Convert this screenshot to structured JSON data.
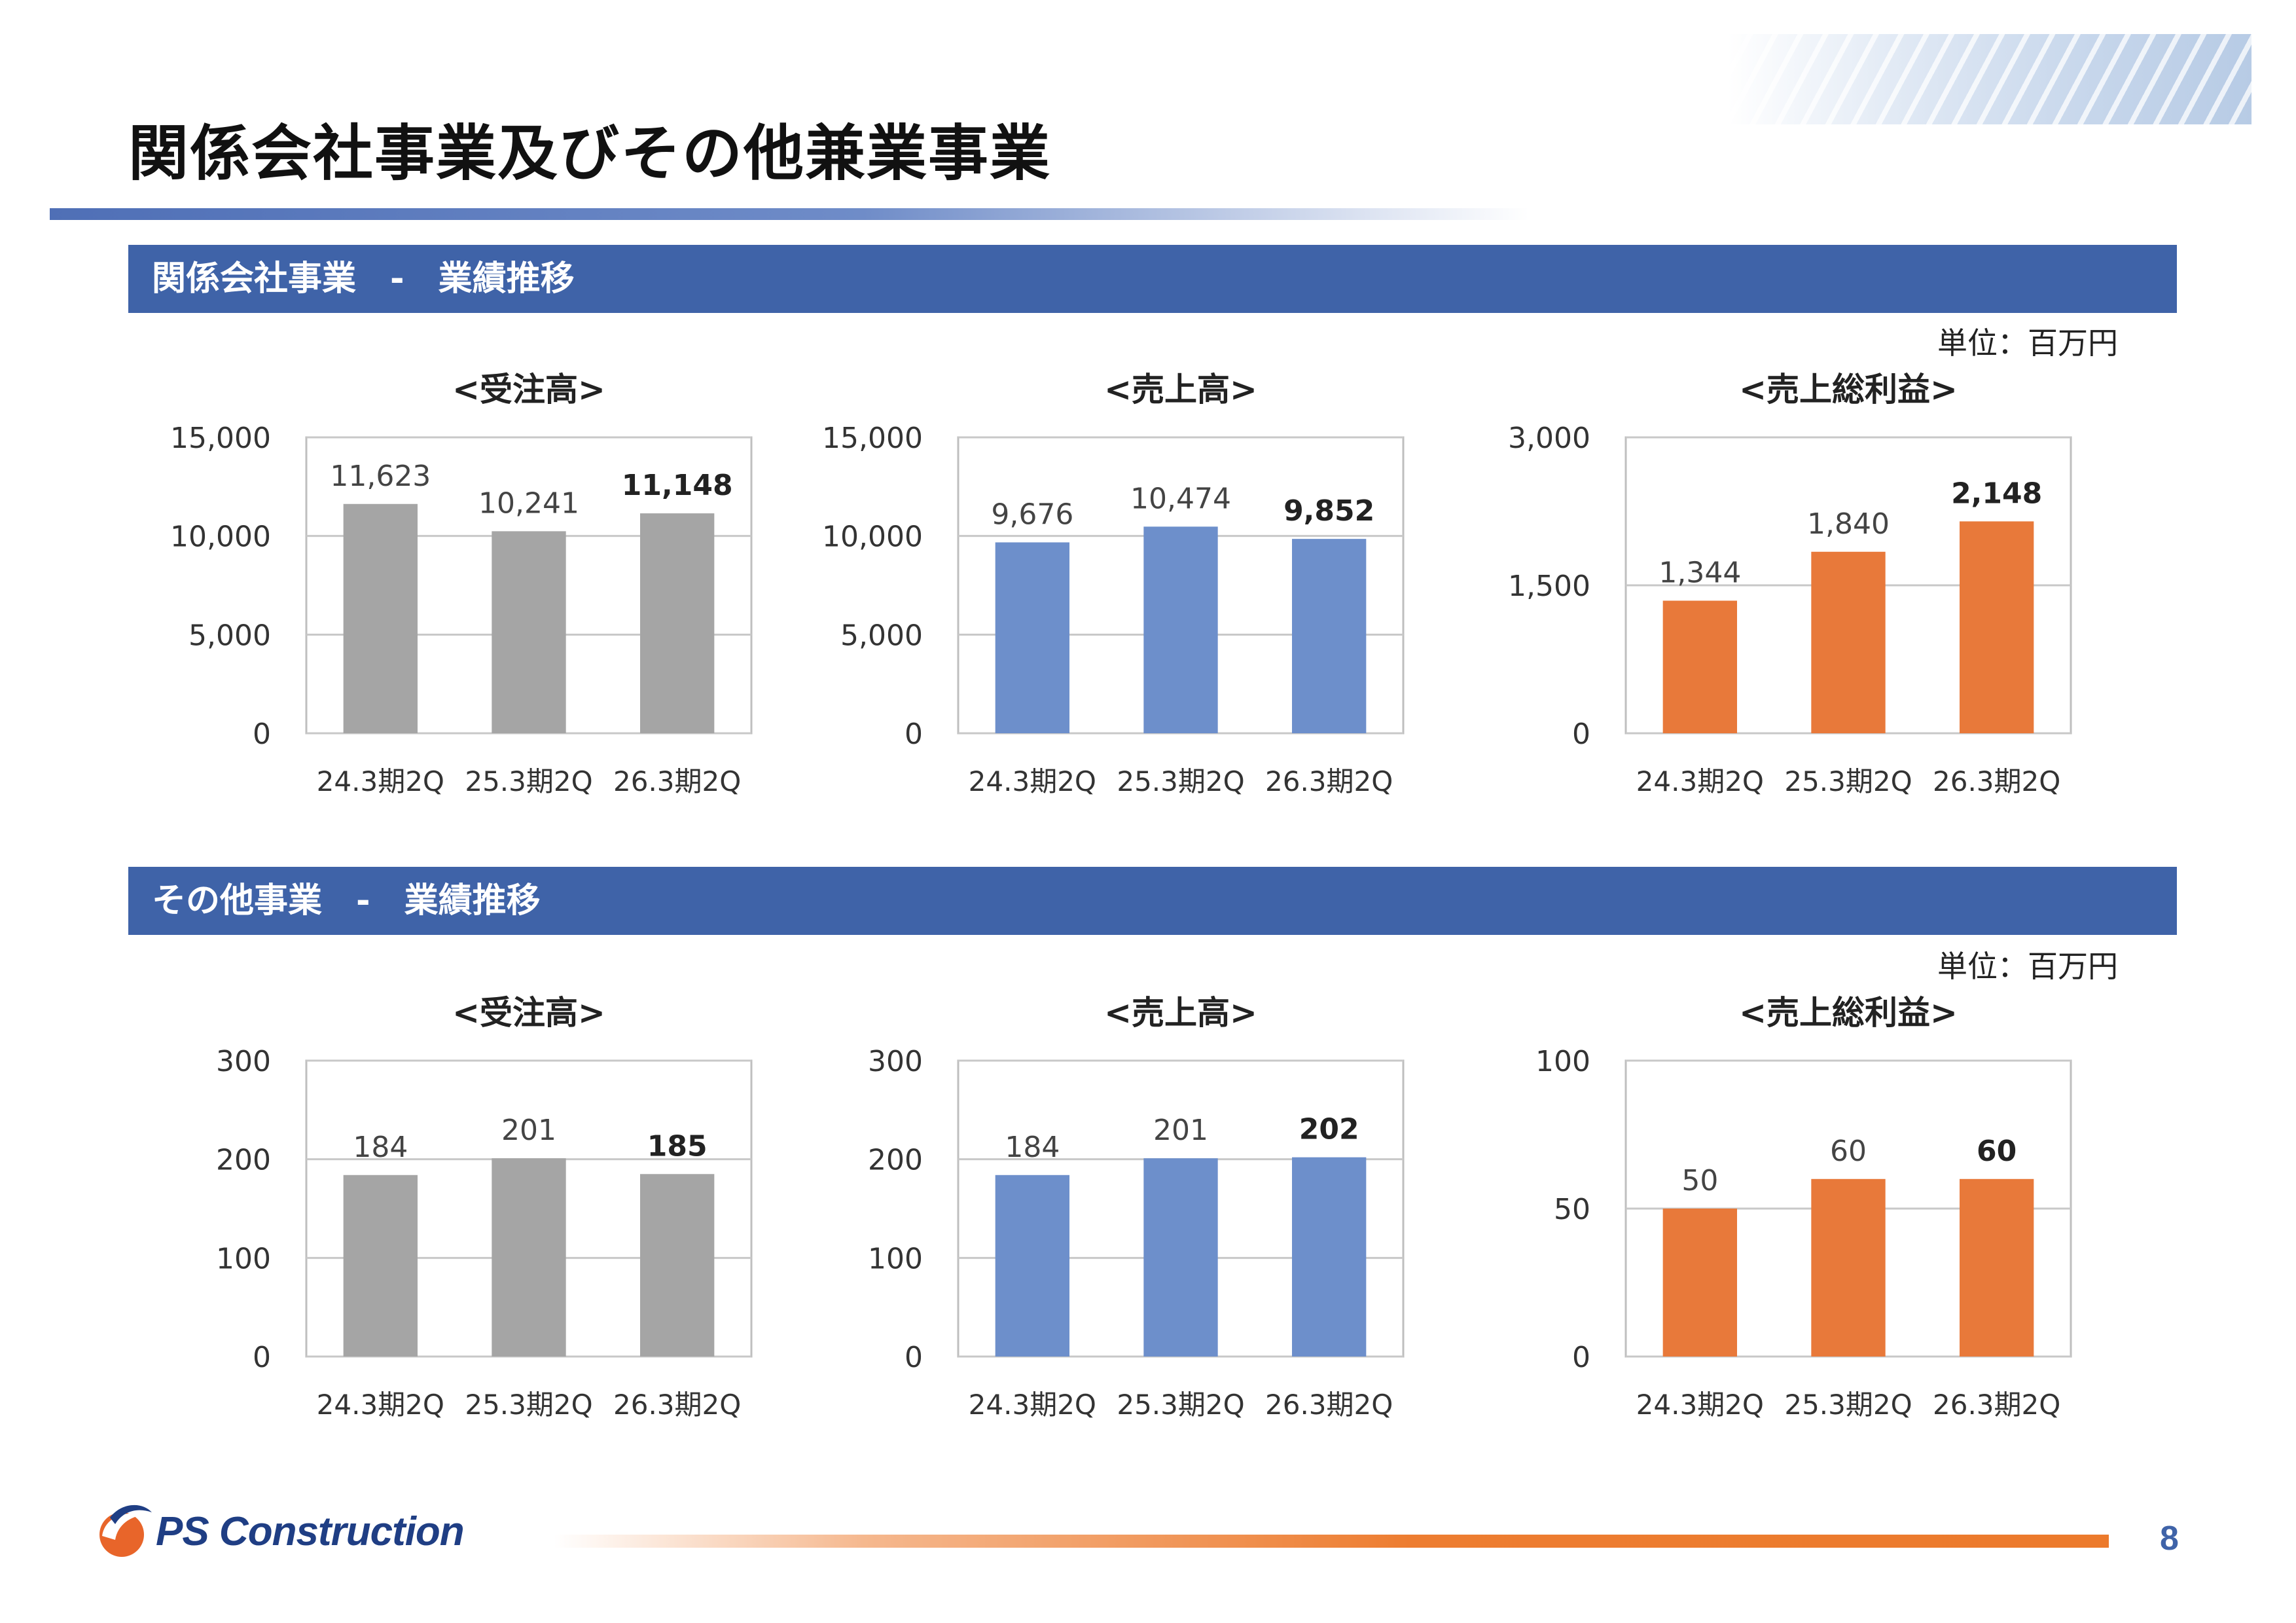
{
  "page": {
    "title": "関係会社事業及びその他兼業事業",
    "number": "8",
    "logo_text": "PS Construction"
  },
  "sections": [
    {
      "title": "関係会社事業　-　業績推移",
      "unit": "単位：百万円"
    },
    {
      "title": "その他事業　-　業績推移",
      "unit": "単位：百万円"
    }
  ],
  "colors": {
    "section_bar": "#3f63a8",
    "orders_bar": "#a5a5a5",
    "sales_bar": "#6d8fcb",
    "profit_bar": "#e8793a",
    "accent_orange": "#ed7d31",
    "page_number": "#3f63a8"
  },
  "chart_data": [
    {
      "id": "affiliate-orders",
      "type": "bar",
      "title": "<受注高>",
      "categories": [
        "24.3期2Q",
        "25.3期2Q",
        "26.3期2Q"
      ],
      "values": [
        11623,
        10241,
        11148
      ],
      "value_labels": [
        "11,623",
        "10,241",
        "11,148"
      ],
      "yticks": [
        0,
        5000,
        10000,
        15000
      ],
      "ytick_labels": [
        "0",
        "5,000",
        "10,000",
        "15,000"
      ],
      "ylim": [
        0,
        15000
      ],
      "grid": true,
      "bold_last": true,
      "color_key": "orders_bar"
    },
    {
      "id": "affiliate-sales",
      "type": "bar",
      "title": "<売上高>",
      "categories": [
        "24.3期2Q",
        "25.3期2Q",
        "26.3期2Q"
      ],
      "values": [
        9676,
        10474,
        9852
      ],
      "value_labels": [
        "9,676",
        "10,474",
        "9,852"
      ],
      "yticks": [
        0,
        5000,
        10000,
        15000
      ],
      "ytick_labels": [
        "0",
        "5,000",
        "10,000",
        "15,000"
      ],
      "ylim": [
        0,
        15000
      ],
      "grid": true,
      "bold_last": true,
      "color_key": "sales_bar"
    },
    {
      "id": "affiliate-gross-profit",
      "type": "bar",
      "title": "<売上総利益>",
      "categories": [
        "24.3期2Q",
        "25.3期2Q",
        "26.3期2Q"
      ],
      "values": [
        1344,
        1840,
        2148
      ],
      "value_labels": [
        "1,344",
        "1,840",
        "2,148"
      ],
      "yticks": [
        0,
        1500,
        3000
      ],
      "ytick_labels": [
        "0",
        "1,500",
        "3,000"
      ],
      "ylim": [
        0,
        3000
      ],
      "grid": true,
      "bold_last": true,
      "color_key": "profit_bar"
    },
    {
      "id": "other-orders",
      "type": "bar",
      "title": "<受注高>",
      "categories": [
        "24.3期2Q",
        "25.3期2Q",
        "26.3期2Q"
      ],
      "values": [
        184,
        201,
        185
      ],
      "value_labels": [
        "184",
        "201",
        "185"
      ],
      "yticks": [
        0,
        100,
        200,
        300
      ],
      "ytick_labels": [
        "0",
        "100",
        "200",
        "300"
      ],
      "ylim": [
        0,
        300
      ],
      "grid": true,
      "bold_last": true,
      "color_key": "orders_bar"
    },
    {
      "id": "other-sales",
      "type": "bar",
      "title": "<売上高>",
      "categories": [
        "24.3期2Q",
        "25.3期2Q",
        "26.3期2Q"
      ],
      "values": [
        184,
        201,
        202
      ],
      "value_labels": [
        "184",
        "201",
        "202"
      ],
      "yticks": [
        0,
        100,
        200,
        300
      ],
      "ytick_labels": [
        "0",
        "100",
        "200",
        "300"
      ],
      "ylim": [
        0,
        300
      ],
      "grid": true,
      "bold_last": true,
      "color_key": "sales_bar"
    },
    {
      "id": "other-gross-profit",
      "type": "bar",
      "title": "<売上総利益>",
      "categories": [
        "24.3期2Q",
        "25.3期2Q",
        "26.3期2Q"
      ],
      "values": [
        50,
        60,
        60
      ],
      "value_labels": [
        "50",
        "60",
        "60"
      ],
      "yticks": [
        0,
        50,
        100
      ],
      "ytick_labels": [
        "0",
        "50",
        "100"
      ],
      "ylim": [
        0,
        100
      ],
      "grid": true,
      "bold_last": true,
      "color_key": "profit_bar"
    }
  ]
}
